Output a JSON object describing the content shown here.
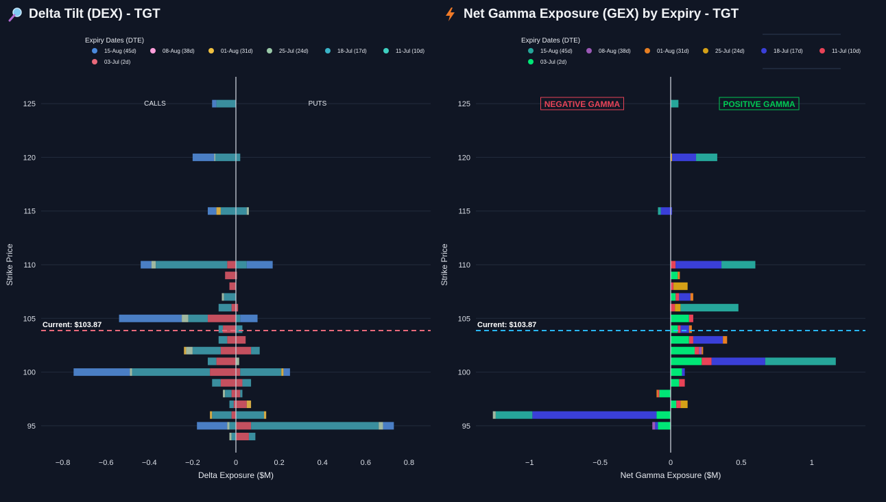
{
  "titles": {
    "dex": "Delta Tilt (DEX) - TGT",
    "gex": "Net Gamma Exposure (GEX) by Expiry - TGT"
  },
  "icons": {
    "dex": "magnifier-icon",
    "gex": "lightning-icon"
  },
  "chart_data": [
    {
      "type": "bar",
      "orientation": "horizontal",
      "barmode": "relative",
      "title": "Delta Tilt (DEX) - TGT",
      "xlabel": "Delta Exposure ($M)",
      "ylabel": "Strike Price",
      "xlim": [
        -0.9,
        0.9
      ],
      "ylim": [
        92.5,
        127.5
      ],
      "xticks": [
        -0.8,
        -0.6,
        -0.4,
        -0.2,
        0,
        0.2,
        0.4,
        0.6,
        0.8
      ],
      "xtick_labels": [
        "−0.8",
        "−0.6",
        "−0.4",
        "−0.2",
        "0",
        "0.2",
        "0.4",
        "0.6",
        "0.8"
      ],
      "yticks": [
        95,
        100,
        105,
        110,
        115,
        120,
        125
      ],
      "legend_title": "Expiry Dates (DTE)",
      "legend": [
        {
          "name": "15-Aug (45d)",
          "color": "#4a89dc"
        },
        {
          "name": "08-Aug (38d)",
          "color": "#ff9edb"
        },
        {
          "name": "01-Aug (31d)",
          "color": "#f0c040"
        },
        {
          "name": "25-Jul (24d)",
          "color": "#9ac9a8"
        },
        {
          "name": "18-Jul (17d)",
          "color": "#3ab4c8"
        },
        {
          "name": "11-Jul (10d)",
          "color": "#3ecfc0"
        },
        {
          "name": "03-Jul (2d)",
          "color": "#e8697a"
        }
      ],
      "side_labels": {
        "left": "CALLS",
        "right": "PUTS"
      },
      "current_price": 103.87,
      "current_label": "Current: $103.87",
      "current_color": "#e8697a",
      "bar_colors": {
        "blue": "#4a7ec4",
        "teal": "#3a8e9e",
        "red": "#c4505f",
        "lite": "#a0b8a0",
        "gold": "#d4aa44"
      },
      "bars": [
        {
          "strike": 125,
          "segs": [
            [
              "blue",
              -0.11,
              -0.09
            ],
            [
              "teal",
              -0.09,
              0
            ]
          ]
        },
        {
          "strike": 120,
          "segs": [
            [
              "blue",
              -0.2,
              -0.1
            ],
            [
              "lite",
              -0.1,
              -0.095
            ],
            [
              "teal",
              -0.095,
              0.02
            ]
          ]
        },
        {
          "strike": 115,
          "segs": [
            [
              "blue",
              -0.13,
              -0.09
            ],
            [
              "gold",
              -0.09,
              -0.07
            ],
            [
              "teal",
              -0.07,
              0.05
            ],
            [
              "lite",
              0.05,
              0.06
            ]
          ]
        },
        {
          "strike": 110,
          "segs": [
            [
              "blue",
              -0.44,
              -0.39
            ],
            [
              "lite",
              -0.39,
              -0.37
            ],
            [
              "teal",
              -0.37,
              -0.04
            ],
            [
              "red",
              -0.04,
              0
            ],
            [
              "teal",
              0,
              0.05
            ],
            [
              "blue",
              0.05,
              0.17
            ]
          ]
        },
        {
          "strike": 109,
          "segs": [
            [
              "red",
              -0.05,
              0
            ],
            [
              "red",
              0,
              0.005
            ]
          ]
        },
        {
          "strike": 108,
          "segs": [
            [
              "red",
              -0.03,
              0
            ]
          ]
        },
        {
          "strike": 107,
          "segs": [
            [
              "lite",
              -0.065,
              -0.055
            ],
            [
              "teal",
              -0.055,
              0
            ]
          ]
        },
        {
          "strike": 106,
          "segs": [
            [
              "teal",
              -0.08,
              -0.02
            ],
            [
              "red",
              -0.02,
              0.01
            ]
          ]
        },
        {
          "strike": 105,
          "segs": [
            [
              "blue",
              -0.54,
              -0.25
            ],
            [
              "lite",
              -0.25,
              -0.22
            ],
            [
              "teal",
              -0.22,
              -0.13
            ],
            [
              "red",
              -0.13,
              0
            ],
            [
              "teal",
              0,
              0.02
            ],
            [
              "blue",
              0.02,
              0.1
            ]
          ]
        },
        {
          "strike": 104,
          "segs": [
            [
              "teal",
              -0.08,
              -0.06
            ],
            [
              "red",
              -0.06,
              0
            ],
            [
              "teal",
              0,
              0.03
            ]
          ]
        },
        {
          "strike": 103,
          "segs": [
            [
              "teal",
              -0.08,
              -0.04
            ],
            [
              "red",
              -0.04,
              0.045
            ]
          ]
        },
        {
          "strike": 102,
          "segs": [
            [
              "gold",
              -0.24,
              -0.23
            ],
            [
              "lite",
              -0.23,
              -0.2
            ],
            [
              "teal",
              -0.2,
              -0.07
            ],
            [
              "red",
              -0.07,
              0.07
            ],
            [
              "teal",
              0.07,
              0.11
            ]
          ]
        },
        {
          "strike": 101,
          "segs": [
            [
              "teal",
              -0.13,
              -0.09
            ],
            [
              "red",
              -0.09,
              0
            ],
            [
              "lite",
              0,
              0.015
            ]
          ]
        },
        {
          "strike": 100,
          "segs": [
            [
              "blue",
              -0.75,
              -0.49
            ],
            [
              "lite",
              -0.49,
              -0.48
            ],
            [
              "teal",
              -0.48,
              -0.12
            ],
            [
              "red",
              -0.12,
              0.02
            ],
            [
              "teal",
              0.02,
              0.21
            ],
            [
              "gold",
              0.21,
              0.22
            ],
            [
              "blue",
              0.22,
              0.25
            ]
          ]
        },
        {
          "strike": 99,
          "segs": [
            [
              "teal",
              -0.11,
              -0.07
            ],
            [
              "red",
              -0.07,
              0.03
            ],
            [
              "teal",
              0.03,
              0.07
            ]
          ]
        },
        {
          "strike": 98,
          "segs": [
            [
              "lite",
              -0.06,
              -0.05
            ],
            [
              "teal",
              -0.05,
              -0.02
            ],
            [
              "red",
              -0.02,
              0.02
            ],
            [
              "teal",
              0.02,
              0.03
            ]
          ]
        },
        {
          "strike": 97,
          "segs": [
            [
              "teal",
              -0.03,
              -0.01
            ],
            [
              "red",
              -0.01,
              0.05
            ],
            [
              "gold",
              0.05,
              0.07
            ]
          ]
        },
        {
          "strike": 96,
          "segs": [
            [
              "gold",
              -0.12,
              -0.11
            ],
            [
              "teal",
              -0.11,
              -0.02
            ],
            [
              "red",
              -0.02,
              0
            ],
            [
              "teal",
              0,
              0.13
            ],
            [
              "gold",
              0.13,
              0.14
            ]
          ]
        },
        {
          "strike": 95,
          "segs": [
            [
              "blue",
              -0.18,
              -0.04
            ],
            [
              "lite",
              -0.04,
              -0.03
            ],
            [
              "teal",
              -0.03,
              0
            ],
            [
              "red",
              0,
              0.07
            ],
            [
              "teal",
              0.07,
              0.66
            ],
            [
              "lite",
              0.66,
              0.68
            ],
            [
              "blue",
              0.68,
              0.73
            ]
          ]
        },
        {
          "strike": 94,
          "segs": [
            [
              "lite",
              -0.03,
              -0.02
            ],
            [
              "teal",
              -0.02,
              0
            ],
            [
              "red",
              0,
              0.06
            ],
            [
              "teal",
              0.06,
              0.09
            ]
          ]
        }
      ]
    },
    {
      "type": "bar",
      "orientation": "horizontal",
      "barmode": "relative",
      "title": "Net Gamma Exposure (GEX) by Expiry - TGT",
      "xlabel": "Net Gamma Exposure ($M)",
      "ylabel": "Strike Price",
      "xlim": [
        -1.38,
        1.38
      ],
      "ylim": [
        92.5,
        127.5
      ],
      "xticks": [
        -1,
        -0.5,
        0,
        0.5,
        1
      ],
      "xtick_labels": [
        "−1",
        "−0.5",
        "0",
        "0.5",
        "1"
      ],
      "yticks": [
        95,
        100,
        105,
        110,
        115,
        120,
        125
      ],
      "legend_title": "Expiry Dates (DTE)",
      "legend": [
        {
          "name": "15-Aug (45d)",
          "color": "#26a69a"
        },
        {
          "name": "08-Aug (38d)",
          "color": "#9b59b6"
        },
        {
          "name": "01-Aug (31d)",
          "color": "#e67e22"
        },
        {
          "name": "25-Jul (24d)",
          "color": "#d4a017"
        },
        {
          "name": "18-Jul (17d)",
          "color": "#3a3fd8"
        },
        {
          "name": "11-Jul (10d)",
          "color": "#e84357"
        },
        {
          "name": "03-Jul (2d)",
          "color": "#00e676"
        }
      ],
      "side_labels": {
        "left": "NEGATIVE GAMMA",
        "right": "POSITIVE GAMMA"
      },
      "side_label_colors": {
        "left": "#e84357",
        "right": "#00c853"
      },
      "current_price": 103.87,
      "current_label": "Current: $103.87",
      "current_color": "#29b6f6",
      "bar_colors": {
        "t15": "#26a69a",
        "p08": "#9b59b6",
        "o01": "#e67e22",
        "g25": "#d4a017",
        "b18": "#3a3fd8",
        "r11": "#e84357",
        "n03": "#00e676"
      },
      "bars": [
        {
          "strike": 125,
          "segs": [
            [
              "t15",
              0,
              0.055
            ]
          ]
        },
        {
          "strike": 120,
          "segs": [
            [
              "g25",
              0,
              0.01
            ],
            [
              "b18",
              0.01,
              0.18
            ],
            [
              "t15",
              0.18,
              0.33
            ]
          ]
        },
        {
          "strike": 115,
          "segs": [
            [
              "t15",
              -0.09,
              -0.07
            ],
            [
              "b18",
              -0.07,
              0.01
            ]
          ]
        },
        {
          "strike": 110,
          "segs": [
            [
              "r11",
              0,
              0.035
            ],
            [
              "b18",
              0.035,
              0.36
            ],
            [
              "t15",
              0.36,
              0.6
            ]
          ]
        },
        {
          "strike": 109,
          "segs": [
            [
              "n03",
              0,
              0.05
            ],
            [
              "o01",
              0.05,
              0.065
            ]
          ]
        },
        {
          "strike": 108,
          "segs": [
            [
              "r11",
              0,
              0.02
            ],
            [
              "g25",
              0.02,
              0.12
            ]
          ]
        },
        {
          "strike": 107,
          "segs": [
            [
              "n03",
              0,
              0.035
            ],
            [
              "r11",
              0.035,
              0.06
            ],
            [
              "b18",
              0.06,
              0.14
            ],
            [
              "o01",
              0.14,
              0.16
            ]
          ]
        },
        {
          "strike": 106,
          "segs": [
            [
              "r11",
              -0.005,
              0.03
            ],
            [
              "g25",
              0.03,
              0.07
            ],
            [
              "t15",
              0.07,
              0.48
            ]
          ]
        },
        {
          "strike": 105,
          "segs": [
            [
              "n03",
              0,
              0.13
            ],
            [
              "r11",
              0.13,
              0.16
            ]
          ]
        },
        {
          "strike": 104,
          "segs": [
            [
              "n03",
              0,
              0.05
            ],
            [
              "r11",
              0.05,
              0.07
            ],
            [
              "b18",
              0.07,
              0.13
            ],
            [
              "o01",
              0.13,
              0.15
            ]
          ]
        },
        {
          "strike": 103,
          "segs": [
            [
              "n03",
              0,
              0.13
            ],
            [
              "r11",
              0.13,
              0.16
            ],
            [
              "b18",
              0.16,
              0.37
            ],
            [
              "o01",
              0.37,
              0.4
            ]
          ]
        },
        {
          "strike": 102,
          "segs": [
            [
              "n03",
              0,
              0.17
            ],
            [
              "r11",
              0.17,
              0.2
            ],
            [
              "p08",
              0.2,
              0.22
            ],
            [
              "o01",
              0.22,
              0.23
            ]
          ]
        },
        {
          "strike": 101,
          "segs": [
            [
              "n03",
              0,
              0.22
            ],
            [
              "r11",
              0.22,
              0.29
            ],
            [
              "b18",
              0.29,
              0.67
            ],
            [
              "t15",
              0.67,
              1.17
            ]
          ]
        },
        {
          "strike": 100,
          "segs": [
            [
              "n03",
              0,
              0.08
            ],
            [
              "b18",
              0.08,
              0.1
            ]
          ]
        },
        {
          "strike": 99,
          "segs": [
            [
              "n03",
              0,
              0.06
            ],
            [
              "r11",
              0.06,
              0.1
            ]
          ]
        },
        {
          "strike": 98,
          "segs": [
            [
              "o01",
              -0.1,
              -0.09
            ],
            [
              "r11",
              -0.09,
              -0.08
            ],
            [
              "n03",
              -0.08,
              0
            ]
          ]
        },
        {
          "strike": 97,
          "segs": [
            [
              "n03",
              0,
              0.04
            ],
            [
              "r11",
              0.04,
              0.07
            ],
            [
              "g25",
              0.07,
              0.12
            ]
          ]
        },
        {
          "strike": 96,
          "segs": [
            [
              "n03",
              -0.1,
              0
            ],
            [
              "b18",
              -0.98,
              -0.1
            ],
            [
              "t15",
              -1.24,
              -0.98
            ],
            [
              "lite",
              -1.26,
              -1.24
            ]
          ]
        },
        {
          "strike": 95,
          "segs": [
            [
              "p08",
              -0.13,
              -0.11
            ],
            [
              "b18",
              -0.11,
              -0.09
            ],
            [
              "n03",
              -0.09,
              0
            ]
          ]
        }
      ]
    }
  ]
}
